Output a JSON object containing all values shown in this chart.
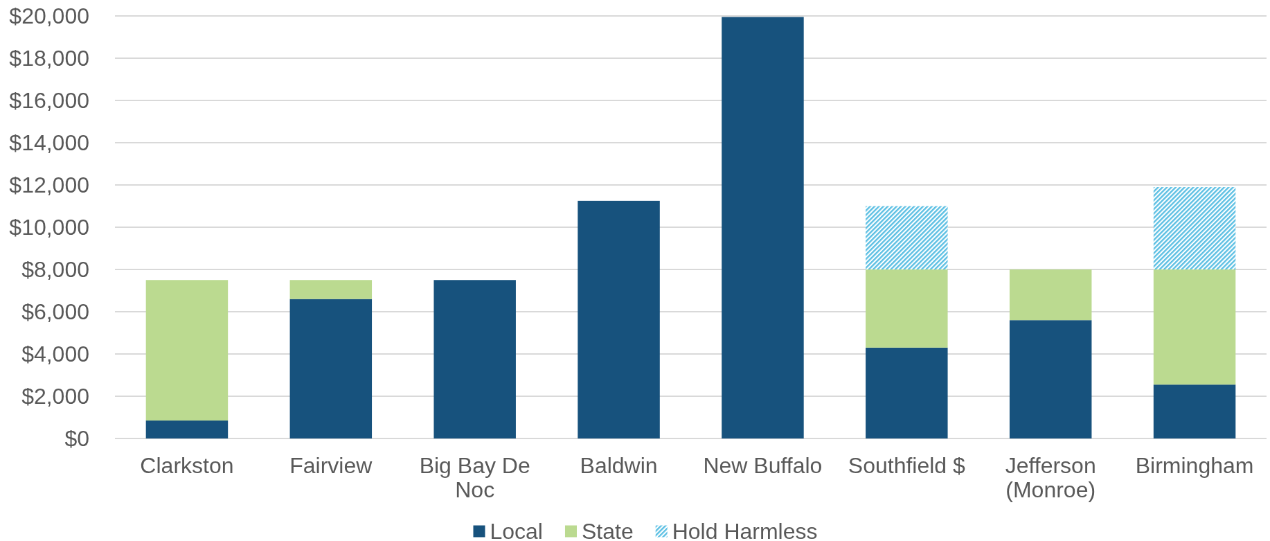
{
  "chart_data": {
    "type": "bar",
    "stacked": true,
    "categories": [
      "Clarkston",
      "Fairview",
      "Big Bay De Noc",
      "Baldwin",
      "New Buffalo",
      "Southfield $",
      "Jefferson (Monroe)",
      "Birmingham"
    ],
    "series": [
      {
        "name": "Local",
        "color": "#17527d",
        "values": [
          850,
          6600,
          7500,
          11250,
          19950,
          4300,
          5600,
          2550
        ]
      },
      {
        "name": "State",
        "color": "#bbda90",
        "values": [
          6650,
          900,
          null,
          null,
          null,
          3700,
          2400,
          5450
        ]
      },
      {
        "name": "Hold Harmless",
        "color": "#5bbfe3",
        "values": [
          null,
          null,
          null,
          null,
          null,
          3000,
          null,
          3900
        ]
      }
    ],
    "ylim": [
      0,
      20000
    ],
    "yticks": [
      {
        "value": 0,
        "label": "$0"
      },
      {
        "value": 2000,
        "label": "$2,000"
      },
      {
        "value": 4000,
        "label": "$4,000"
      },
      {
        "value": 6000,
        "label": "$6,000"
      },
      {
        "value": 8000,
        "label": "$8,000"
      },
      {
        "value": 10000,
        "label": "$10,000"
      },
      {
        "value": 12000,
        "label": "$12,000"
      },
      {
        "value": 14000,
        "label": "$14,000"
      },
      {
        "value": 16000,
        "label": "$16,000"
      },
      {
        "value": 18000,
        "label": "$18,000"
      },
      {
        "value": 20000,
        "label": "$20,000"
      }
    ],
    "grid": "y",
    "legend": "bottom"
  }
}
